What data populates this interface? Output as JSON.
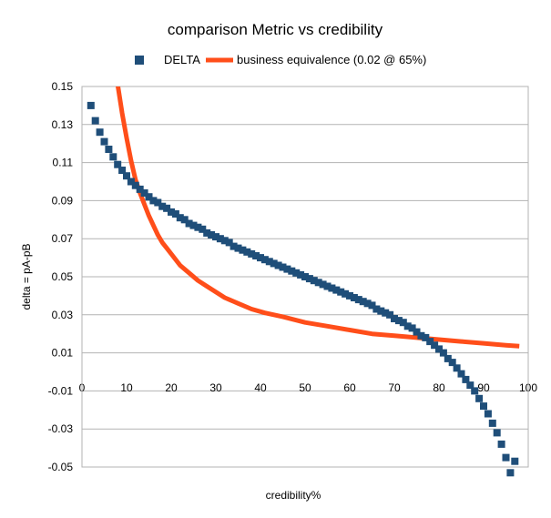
{
  "chart_data": {
    "type": "scatter",
    "title": "comparison Metric vs credibility",
    "xlabel": "credibility%",
    "ylabel": "delta = pA-pB",
    "xlim": [
      0,
      100
    ],
    "ylim": [
      -0.05,
      0.15
    ],
    "x_ticks": [
      "0",
      "10",
      "20",
      "30",
      "40",
      "50",
      "60",
      "70",
      "80",
      "90",
      "100"
    ],
    "y_ticks": [
      "0.15",
      "0.13",
      "0.11",
      "0.09",
      "0.07",
      "0.05",
      "0.03",
      "0.01",
      "-0.01",
      "-0.03",
      "-0.05"
    ],
    "grid": "horizontal",
    "legend_position": "top",
    "series": [
      {
        "name": "DELTA",
        "kind": "markers",
        "color": "#1f4e79",
        "points": [
          [
            2,
            0.14
          ],
          [
            3,
            0.132
          ],
          [
            4,
            0.126
          ],
          [
            5,
            0.121
          ],
          [
            6,
            0.117
          ],
          [
            7,
            0.113
          ],
          [
            8,
            0.109
          ],
          [
            9,
            0.106
          ],
          [
            10,
            0.103
          ],
          [
            11,
            0.1
          ],
          [
            12,
            0.098
          ],
          [
            13,
            0.096
          ],
          [
            14,
            0.094
          ],
          [
            15,
            0.092
          ],
          [
            16,
            0.09
          ],
          [
            17,
            0.089
          ],
          [
            18,
            0.087
          ],
          [
            19,
            0.086
          ],
          [
            20,
            0.084
          ],
          [
            21,
            0.083
          ],
          [
            22,
            0.081
          ],
          [
            23,
            0.08
          ],
          [
            24,
            0.078
          ],
          [
            25,
            0.077
          ],
          [
            26,
            0.076
          ],
          [
            27,
            0.075
          ],
          [
            28,
            0.073
          ],
          [
            29,
            0.072
          ],
          [
            30,
            0.071
          ],
          [
            31,
            0.07
          ],
          [
            32,
            0.069
          ],
          [
            33,
            0.068
          ],
          [
            34,
            0.066
          ],
          [
            35,
            0.065
          ],
          [
            36,
            0.064
          ],
          [
            37,
            0.063
          ],
          [
            38,
            0.062
          ],
          [
            39,
            0.061
          ],
          [
            40,
            0.06
          ],
          [
            41,
            0.059
          ],
          [
            42,
            0.058
          ],
          [
            43,
            0.057
          ],
          [
            44,
            0.056
          ],
          [
            45,
            0.055
          ],
          [
            46,
            0.054
          ],
          [
            47,
            0.053
          ],
          [
            48,
            0.052
          ],
          [
            49,
            0.051
          ],
          [
            50,
            0.05
          ],
          [
            51,
            0.049
          ],
          [
            52,
            0.048
          ],
          [
            53,
            0.047
          ],
          [
            54,
            0.046
          ],
          [
            55,
            0.045
          ],
          [
            56,
            0.044
          ],
          [
            57,
            0.043
          ],
          [
            58,
            0.042
          ],
          [
            59,
            0.041
          ],
          [
            60,
            0.04
          ],
          [
            61,
            0.039
          ],
          [
            62,
            0.038
          ],
          [
            63,
            0.037
          ],
          [
            64,
            0.036
          ],
          [
            65,
            0.035
          ],
          [
            66,
            0.033
          ],
          [
            67,
            0.032
          ],
          [
            68,
            0.031
          ],
          [
            69,
            0.03
          ],
          [
            70,
            0.028
          ],
          [
            71,
            0.027
          ],
          [
            72,
            0.026
          ],
          [
            73,
            0.024
          ],
          [
            74,
            0.023
          ],
          [
            75,
            0.021
          ],
          [
            76,
            0.019
          ],
          [
            77,
            0.018
          ],
          [
            78,
            0.016
          ],
          [
            79,
            0.014
          ],
          [
            80,
            0.012
          ],
          [
            81,
            0.01
          ],
          [
            82,
            0.007
          ],
          [
            83,
            0.005
          ],
          [
            84,
            0.002
          ],
          [
            85,
            -0.001
          ],
          [
            86,
            -0.004
          ],
          [
            87,
            -0.007
          ],
          [
            88,
            -0.01
          ],
          [
            89,
            -0.014
          ],
          [
            90,
            -0.018
          ],
          [
            91,
            -0.022
          ],
          [
            92,
            -0.027
          ],
          [
            93,
            -0.032
          ],
          [
            94,
            -0.038
          ],
          [
            95,
            -0.045
          ],
          [
            96,
            -0.053
          ],
          [
            97,
            -0.047
          ]
        ]
      },
      {
        "name": "business equivalence (0.02 @ 65%)",
        "kind": "line",
        "color": "#ff4e1a",
        "points": [
          [
            8,
            0.151
          ],
          [
            9,
            0.136
          ],
          [
            10,
            0.123
          ],
          [
            11,
            0.111
          ],
          [
            12,
            0.101
          ],
          [
            13,
            0.094
          ],
          [
            14,
            0.088
          ],
          [
            15,
            0.082
          ],
          [
            16,
            0.077
          ],
          [
            17,
            0.072
          ],
          [
            18,
            0.068
          ],
          [
            19,
            0.065
          ],
          [
            20,
            0.062
          ],
          [
            22,
            0.056
          ],
          [
            24,
            0.052
          ],
          [
            26,
            0.048
          ],
          [
            28,
            0.045
          ],
          [
            30,
            0.042
          ],
          [
            32,
            0.039
          ],
          [
            35,
            0.036
          ],
          [
            38,
            0.033
          ],
          [
            41,
            0.031
          ],
          [
            45,
            0.029
          ],
          [
            50,
            0.026
          ],
          [
            55,
            0.024
          ],
          [
            60,
            0.022
          ],
          [
            65,
            0.02
          ],
          [
            70,
            0.019
          ],
          [
            75,
            0.018
          ],
          [
            80,
            0.017
          ],
          [
            85,
            0.016
          ],
          [
            90,
            0.015
          ],
          [
            95,
            0.014
          ],
          [
            98,
            0.0135
          ]
        ]
      }
    ]
  }
}
